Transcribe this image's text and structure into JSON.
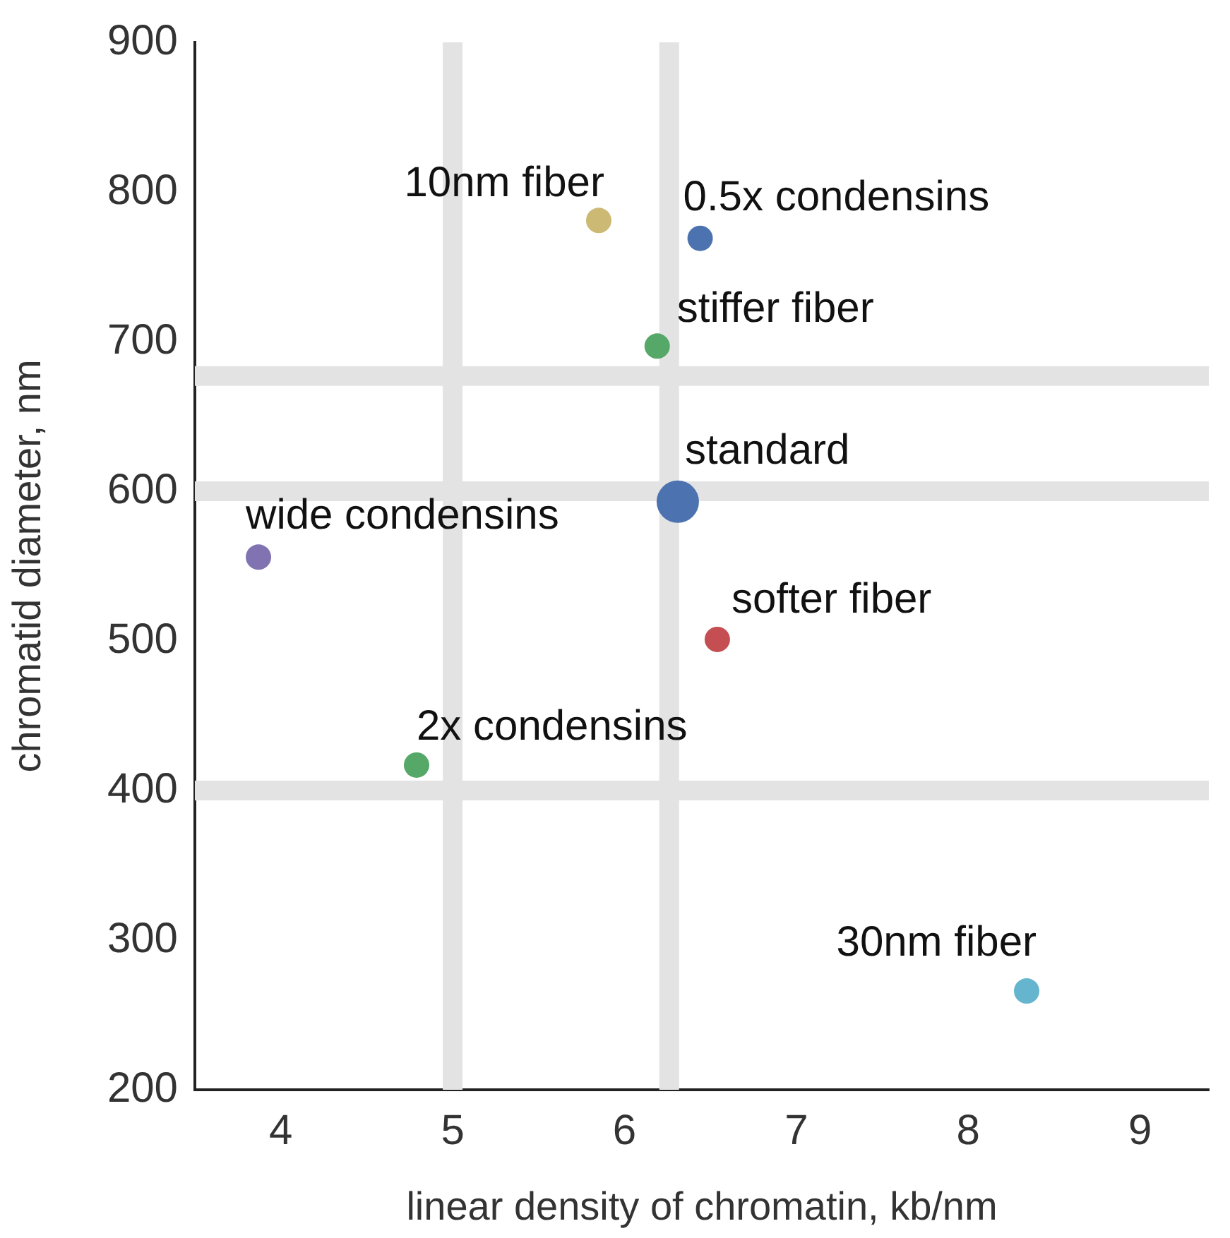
{
  "chart_data": {
    "type": "bubble",
    "xlabel": "linear density of chromatin, kb/nm",
    "ylabel": "chromatid diameter, nm",
    "xlim": [
      3.5,
      9.4
    ],
    "xticks": [
      4,
      5,
      6,
      7,
      8,
      9
    ],
    "ylim": [
      200,
      900
    ],
    "yticks": [
      200,
      300,
      400,
      500,
      600,
      700,
      800,
      900
    ],
    "grid": false,
    "legend": false,
    "ref_lines": [
      {
        "axis": "x",
        "value": 5.0,
        "color": "#e3e3e3"
      },
      {
        "axis": "x",
        "value": 6.26,
        "color": "#e3e3e3"
      },
      {
        "axis": "y",
        "value": 677,
        "color": "#e3e3e3"
      },
      {
        "axis": "y",
        "value": 600,
        "color": "#e3e3e3"
      },
      {
        "axis": "y",
        "value": 400,
        "color": "#e3e3e3"
      }
    ],
    "series": [
      {
        "name": "10nm fiber",
        "color": "#ccb974",
        "x": [
          5.85
        ],
        "values": [
          781
        ],
        "sizes": [
          0.36
        ]
      },
      {
        "name": "0.5x condensins",
        "color": "#4c72b0",
        "x": [
          6.44
        ],
        "values": [
          769
        ],
        "sizes": [
          0.36
        ]
      },
      {
        "name": "stiffer fiber",
        "color": "#55a868",
        "x": [
          6.19
        ],
        "values": [
          697
        ],
        "sizes": [
          0.36
        ]
      },
      {
        "name": "standard",
        "color": "#4c72b0",
        "x": [
          6.31
        ],
        "values": [
          593
        ],
        "sizes": [
          1
        ]
      },
      {
        "name": "wide condensins",
        "color": "#8172b2",
        "x": [
          3.87
        ],
        "values": [
          556
        ],
        "sizes": [
          0.36
        ]
      },
      {
        "name": "softer fiber",
        "color": "#c44e52",
        "x": [
          6.54
        ],
        "values": [
          501
        ],
        "sizes": [
          0.36
        ]
      },
      {
        "name": "2x condensins",
        "color": "#55a868",
        "x": [
          4.79
        ],
        "values": [
          417
        ],
        "sizes": [
          0.36
        ]
      },
      {
        "name": "30nm fiber",
        "color": "#64b5cd",
        "x": [
          8.34
        ],
        "values": [
          266
        ],
        "sizes": [
          0.36
        ]
      }
    ]
  }
}
